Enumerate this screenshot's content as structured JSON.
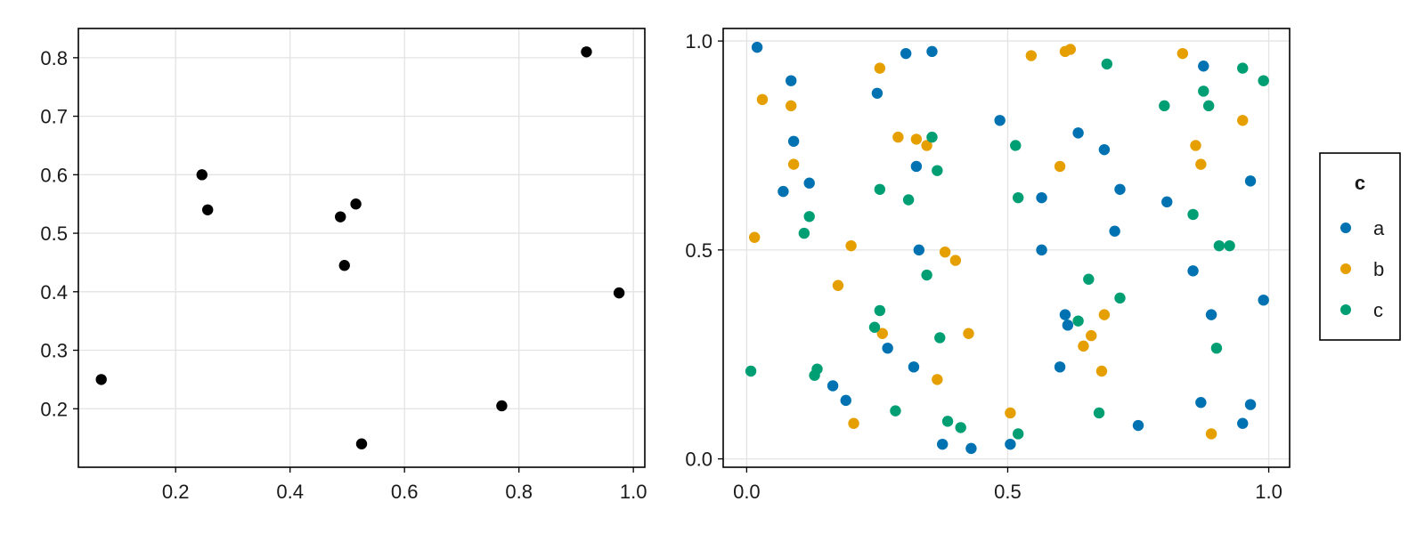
{
  "colors": {
    "a": "#0072b2",
    "b": "#e69f00",
    "c": "#009e73",
    "single": "#000000",
    "grid": "#e3e3e3"
  },
  "chart_data": [
    {
      "type": "scatter",
      "title": "",
      "xlabel": "",
      "ylabel": "",
      "xlim": [
        0.03,
        1.02
      ],
      "ylim": [
        0.1,
        0.85
      ],
      "xticks": [
        0.2,
        0.4,
        0.6,
        0.8,
        1.0
      ],
      "xtick_labels": [
        "0.2",
        "0.4",
        "0.6",
        "0.8",
        "1.0"
      ],
      "yticks": [
        0.2,
        0.3,
        0.4,
        0.5,
        0.6,
        0.7,
        0.8
      ],
      "ytick_labels": [
        "0.2",
        "0.3",
        "0.4",
        "0.5",
        "0.6",
        "0.7",
        "0.8"
      ],
      "grid": true,
      "series": [
        {
          "color": "#000000",
          "points": [
            [
              0.07,
              0.25
            ],
            [
              0.246,
              0.6
            ],
            [
              0.256,
              0.54
            ],
            [
              0.488,
              0.528
            ],
            [
              0.515,
              0.55
            ],
            [
              0.495,
              0.445
            ],
            [
              0.525,
              0.14
            ],
            [
              0.77,
              0.205
            ],
            [
              0.918,
              0.81
            ],
            [
              0.975,
              0.398
            ]
          ]
        }
      ]
    },
    {
      "type": "scatter",
      "title": "",
      "xlabel": "",
      "ylabel": "",
      "xlim": [
        -0.045,
        1.04
      ],
      "ylim": [
        -0.02,
        1.03
      ],
      "xticks": [
        0.0,
        0.5,
        1.0
      ],
      "xtick_labels": [
        "0.0",
        "0.5",
        "1.0"
      ],
      "yticks": [
        0.0,
        0.5,
        1.0
      ],
      "ytick_labels": [
        "0.0",
        "0.5",
        "1.0"
      ],
      "grid": true,
      "legend": {
        "title": "c",
        "placement": "right",
        "entries": [
          "a",
          "b",
          "c"
        ]
      },
      "series": [
        {
          "name": "a",
          "color": "#0072b2",
          "points": [
            [
              0.02,
              0.985
            ],
            [
              0.085,
              0.905
            ],
            [
              0.09,
              0.76
            ],
            [
              0.07,
              0.64
            ],
            [
              0.12,
              0.66
            ],
            [
              0.25,
              0.875
            ],
            [
              0.305,
              0.97
            ],
            [
              0.355,
              0.975
            ],
            [
              0.325,
              0.7
            ],
            [
              0.33,
              0.5
            ],
            [
              0.27,
              0.265
            ],
            [
              0.32,
              0.22
            ],
            [
              0.165,
              0.175
            ],
            [
              0.19,
              0.14
            ],
            [
              0.375,
              0.035
            ],
            [
              0.43,
              0.025
            ],
            [
              0.505,
              0.035
            ],
            [
              0.485,
              0.81
            ],
            [
              0.565,
              0.625
            ],
            [
              0.565,
              0.5
            ],
            [
              0.635,
              0.78
            ],
            [
              0.685,
              0.74
            ],
            [
              0.715,
              0.645
            ],
            [
              0.705,
              0.545
            ],
            [
              0.61,
              0.345
            ],
            [
              0.615,
              0.32
            ],
            [
              0.6,
              0.22
            ],
            [
              0.75,
              0.08
            ],
            [
              0.805,
              0.615
            ],
            [
              0.875,
              0.94
            ],
            [
              0.965,
              0.665
            ],
            [
              0.855,
              0.45
            ],
            [
              0.89,
              0.345
            ],
            [
              0.87,
              0.135
            ],
            [
              0.95,
              0.085
            ],
            [
              0.965,
              0.13
            ],
            [
              0.99,
              0.38
            ]
          ]
        },
        {
          "name": "b",
          "color": "#e69f00",
          "points": [
            [
              0.015,
              0.53
            ],
            [
              0.03,
              0.86
            ],
            [
              0.085,
              0.845
            ],
            [
              0.09,
              0.705
            ],
            [
              0.2,
              0.51
            ],
            [
              0.175,
              0.415
            ],
            [
              0.205,
              0.085
            ],
            [
              0.255,
              0.935
            ],
            [
              0.29,
              0.77
            ],
            [
              0.325,
              0.765
            ],
            [
              0.345,
              0.75
            ],
            [
              0.26,
              0.3
            ],
            [
              0.38,
              0.495
            ],
            [
              0.4,
              0.475
            ],
            [
              0.365,
              0.19
            ],
            [
              0.425,
              0.3
            ],
            [
              0.505,
              0.11
            ],
            [
              0.545,
              0.965
            ],
            [
              0.61,
              0.975
            ],
            [
              0.62,
              0.98
            ],
            [
              0.6,
              0.7
            ],
            [
              0.645,
              0.27
            ],
            [
              0.66,
              0.295
            ],
            [
              0.685,
              0.345
            ],
            [
              0.68,
              0.21
            ],
            [
              0.835,
              0.97
            ],
            [
              0.86,
              0.75
            ],
            [
              0.87,
              0.705
            ],
            [
              0.89,
              0.06
            ],
            [
              0.95,
              0.81
            ]
          ]
        },
        {
          "name": "c",
          "color": "#009e73",
          "points": [
            [
              0.008,
              0.21
            ],
            [
              0.11,
              0.54
            ],
            [
              0.12,
              0.58
            ],
            [
              0.13,
              0.2
            ],
            [
              0.135,
              0.215
            ],
            [
              0.255,
              0.645
            ],
            [
              0.255,
              0.355
            ],
            [
              0.245,
              0.315
            ],
            [
              0.285,
              0.115
            ],
            [
              0.31,
              0.62
            ],
            [
              0.355,
              0.77
            ],
            [
              0.365,
              0.69
            ],
            [
              0.345,
              0.44
            ],
            [
              0.37,
              0.29
            ],
            [
              0.385,
              0.09
            ],
            [
              0.41,
              0.075
            ],
            [
              0.515,
              0.75
            ],
            [
              0.52,
              0.625
            ],
            [
              0.52,
              0.06
            ],
            [
              0.635,
              0.33
            ],
            [
              0.655,
              0.43
            ],
            [
              0.675,
              0.11
            ],
            [
              0.69,
              0.945
            ],
            [
              0.715,
              0.385
            ],
            [
              0.8,
              0.845
            ],
            [
              0.855,
              0.585
            ],
            [
              0.875,
              0.88
            ],
            [
              0.885,
              0.845
            ],
            [
              0.905,
              0.51
            ],
            [
              0.925,
              0.51
            ],
            [
              0.9,
              0.265
            ],
            [
              0.95,
              0.935
            ],
            [
              0.99,
              0.905
            ]
          ]
        }
      ]
    }
  ]
}
